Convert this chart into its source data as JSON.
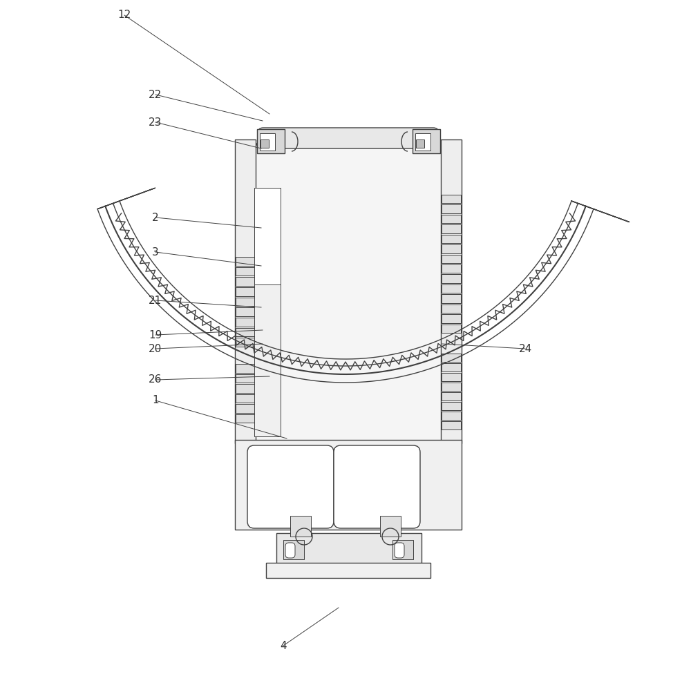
{
  "bg_color": "#ffffff",
  "line_color": "#404040",
  "label_color": "#303030"
}
